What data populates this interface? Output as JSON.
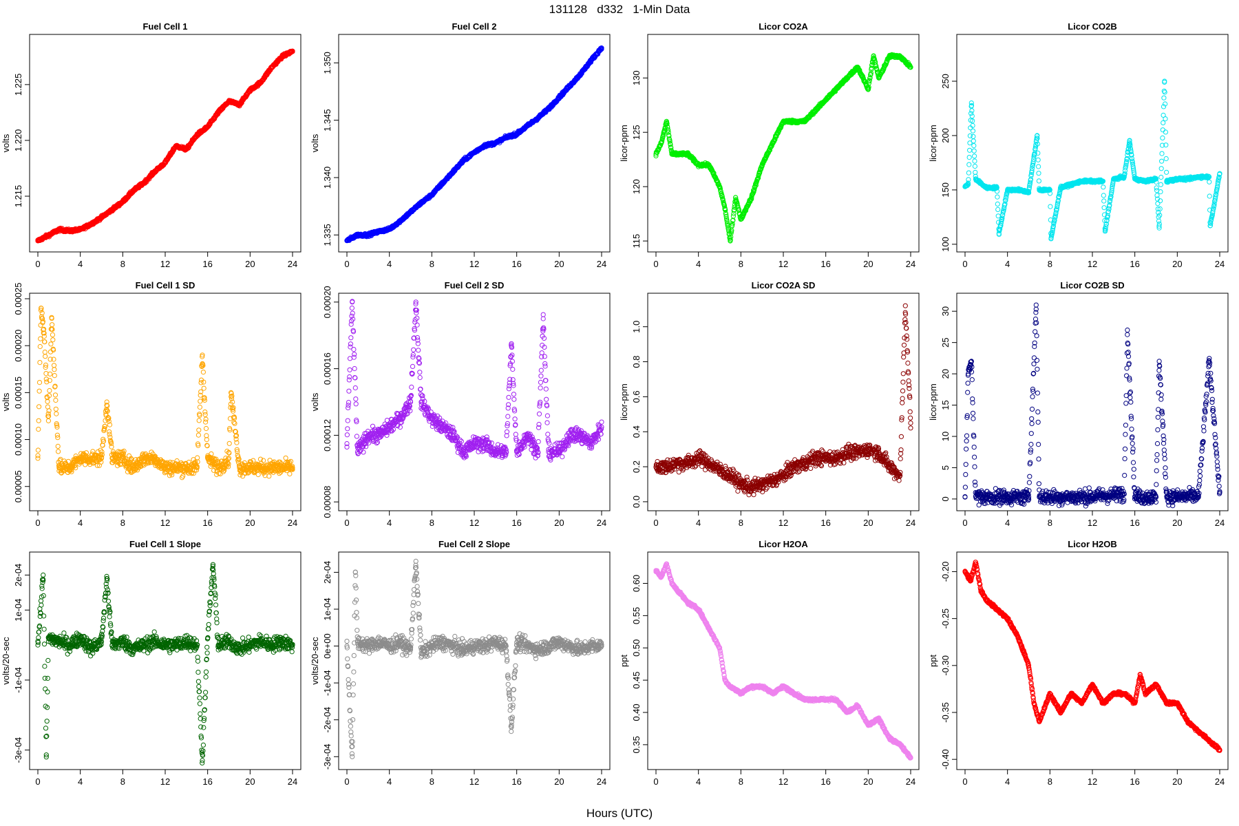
{
  "title": "131128   d332   1-Min Data",
  "xlabel": "Hours (UTC)",
  "chart_data": [
    {
      "type": "scatter",
      "title": "Fuel Cell 1",
      "ylabel": "volts",
      "color": "#ff0000",
      "xlim": [
        0,
        24
      ],
      "ylim": [
        1.2105,
        1.229
      ],
      "yticks": [
        "1.215",
        "1.220",
        "1.225"
      ],
      "x": [
        0,
        1,
        2,
        3,
        4,
        5,
        6,
        7,
        8,
        9,
        10,
        11,
        12,
        13,
        14,
        15,
        16,
        17,
        18,
        19,
        20,
        21,
        22,
        23,
        24
      ],
      "y": [
        1.211,
        1.2115,
        1.212,
        1.2119,
        1.212,
        1.2125,
        1.2131,
        1.2138,
        1.2145,
        1.2155,
        1.2162,
        1.2172,
        1.218,
        1.2195,
        1.2192,
        1.2205,
        1.2212,
        1.2225,
        1.2235,
        1.2232,
        1.2245,
        1.2252,
        1.2265,
        1.2275,
        1.228
      ]
    },
    {
      "type": "scatter",
      "title": "Fuel Cell 2",
      "ylabel": "volts",
      "color": "#0000ff",
      "xlim": [
        0,
        24
      ],
      "ylim": [
        1.334,
        1.352
      ],
      "yticks": [
        "1.335",
        "1.340",
        "1.345",
        "1.350"
      ],
      "x": [
        0,
        1,
        2,
        3,
        4,
        5,
        6,
        7,
        8,
        9,
        10,
        11,
        12,
        13,
        14,
        15,
        16,
        17,
        18,
        19,
        20,
        21,
        22,
        23,
        24
      ],
      "y": [
        1.3345,
        1.335,
        1.335,
        1.3353,
        1.3355,
        1.3362,
        1.337,
        1.3378,
        1.3385,
        1.3395,
        1.3405,
        1.3415,
        1.3422,
        1.3428,
        1.343,
        1.3435,
        1.3438,
        1.3445,
        1.3452,
        1.346,
        1.347,
        1.348,
        1.349,
        1.3502,
        1.3513
      ]
    },
    {
      "type": "scatter",
      "title": "Licor CO2A",
      "ylabel": "licor-ppm",
      "color": "#00ee00",
      "xlim": [
        0,
        24
      ],
      "ylim": [
        114.5,
        133.5
      ],
      "yticks": [
        "115",
        "120",
        "125",
        "130"
      ],
      "x": [
        0,
        0.5,
        1,
        1.5,
        2,
        3,
        4,
        5,
        6,
        6.5,
        7,
        7.5,
        8,
        9,
        10,
        11,
        12,
        13,
        14,
        15,
        16,
        17,
        18,
        19,
        20,
        20.5,
        21,
        22,
        23,
        24
      ],
      "y": [
        123,
        124,
        126,
        123,
        123,
        123,
        122,
        122,
        120,
        118,
        115,
        119,
        117,
        119,
        122,
        124,
        126,
        126,
        126,
        127,
        128,
        129,
        130,
        131,
        129,
        132,
        130,
        132,
        132,
        131
      ]
    },
    {
      "type": "scatter",
      "title": "Licor CO2B",
      "ylabel": "licor-ppm",
      "color": "#00e5ee",
      "xlim": [
        0,
        24
      ],
      "ylim": [
        98,
        288
      ],
      "yticks": [
        "100",
        "150",
        "200",
        "250"
      ],
      "x": [
        0,
        0.3,
        0.6,
        1,
        2,
        3,
        3.2,
        4,
        5,
        6,
        6.8,
        7,
        8,
        8.1,
        9,
        10,
        11,
        12,
        13,
        13.2,
        14,
        15,
        15.5,
        16,
        17,
        18,
        18.3,
        18.8,
        19,
        20,
        21,
        22,
        23,
        23.1,
        24
      ],
      "y": [
        153,
        155,
        230,
        160,
        152,
        152,
        110,
        150,
        150,
        148,
        200,
        150,
        150,
        105,
        152,
        155,
        158,
        158,
        158,
        112,
        160,
        162,
        195,
        160,
        158,
        160,
        115,
        250,
        158,
        160,
        160,
        162,
        162,
        117,
        165
      ]
    },
    {
      "type": "scatter",
      "title": "Fuel Cell 1 SD",
      "ylabel": "volts",
      "color": "#ffa500",
      "xlim": [
        0,
        24
      ],
      "ylim": [
        3e-05,
        0.00025
      ],
      "yticks": [
        "0.00005",
        "0.00010",
        "0.00015",
        "0.00020",
        "0.00025"
      ],
      "x": [
        0,
        0.3,
        0.6,
        1,
        1.3,
        2,
        3,
        4,
        5,
        6,
        6.5,
        7,
        8,
        9,
        10,
        11,
        12,
        13,
        14,
        15,
        15.5,
        16,
        17,
        18,
        18.2,
        19,
        20,
        21,
        22,
        23,
        24
      ],
      "y": [
        8e-05,
        0.00024,
        0.00021,
        0.00012,
        0.00023,
        7e-05,
        7e-05,
        8e-05,
        8e-05,
        8e-05,
        0.00014,
        8e-05,
        8e-05,
        7e-05,
        8e-05,
        8e-05,
        7e-05,
        7e-05,
        7e-05,
        7e-05,
        0.00019,
        8e-05,
        7e-05,
        8e-05,
        0.00015,
        7e-05,
        7e-05,
        7e-05,
        7e-05,
        7e-05,
        7e-05
      ]
    },
    {
      "type": "scatter",
      "title": "Fuel Cell 2 SD",
      "ylabel": "volts",
      "color": "#a020f0",
      "xlim": [
        0,
        24
      ],
      "ylim": [
        7.8e-05,
        0.000202
      ],
      "yticks": [
        "0.00008",
        "0.00012",
        "0.00016",
        "0.00020"
      ],
      "x": [
        0,
        0.5,
        1,
        2,
        3,
        4,
        5,
        6,
        6.5,
        7,
        8,
        9,
        10,
        11,
        12,
        13,
        14,
        15,
        15.5,
        16,
        17,
        18,
        18.5,
        19,
        20,
        21,
        22,
        23,
        24
      ],
      "y": [
        0.000115,
        0.0002,
        0.00011,
        0.00012,
        0.00012,
        0.000125,
        0.00013,
        0.00014,
        0.0002,
        0.00014,
        0.00013,
        0.000125,
        0.00012,
        0.00011,
        0.000115,
        0.000115,
        0.00011,
        0.00011,
        0.000175,
        0.00011,
        0.00012,
        0.00011,
        0.00019,
        0.00011,
        0.00011,
        0.00012,
        0.00012,
        0.000115,
        0.000125
      ]
    },
    {
      "type": "scatter",
      "title": "Licor CO2A SD",
      "ylabel": "licor-ppm",
      "color": "#8b0000",
      "xlim": [
        0,
        24
      ],
      "ylim": [
        -0.02,
        1.16
      ],
      "yticks": [
        "0.0",
        "0.2",
        "0.4",
        "0.6",
        "0.8",
        "1.0"
      ],
      "x": [
        0,
        1,
        2,
        3,
        4,
        5,
        6,
        7,
        8,
        9,
        10,
        11,
        12,
        13,
        14,
        15,
        16,
        17,
        18,
        19,
        20,
        21,
        22,
        23,
        23.5,
        24
      ],
      "y": [
        0.2,
        0.2,
        0.22,
        0.22,
        0.25,
        0.22,
        0.18,
        0.15,
        0.1,
        0.08,
        0.1,
        0.12,
        0.15,
        0.2,
        0.22,
        0.25,
        0.25,
        0.25,
        0.28,
        0.28,
        0.3,
        0.28,
        0.2,
        0.15,
        1.12,
        0.45
      ]
    },
    {
      "type": "scatter",
      "title": "Licor CO2B SD",
      "ylabel": "licor-ppm",
      "color": "#000080",
      "xlim": [
        0,
        24
      ],
      "ylim": [
        -1,
        32
      ],
      "yticks": [
        "0",
        "5",
        "10",
        "15",
        "20",
        "25",
        "30"
      ],
      "x": [
        0,
        0.3,
        0.6,
        1,
        2,
        3,
        4,
        5,
        6,
        6.7,
        7,
        8,
        9,
        10,
        11,
        12,
        13,
        14,
        15,
        15.3,
        16,
        17,
        18,
        18.3,
        19,
        20,
        21,
        22,
        23,
        24
      ],
      "y": [
        0.3,
        20,
        22,
        0.4,
        0.3,
        0.3,
        0.3,
        0.3,
        0.3,
        31,
        0.3,
        0.3,
        0.3,
        0.3,
        0.3,
        0.4,
        0.5,
        0.6,
        0.8,
        27,
        0.4,
        0.3,
        0.3,
        22,
        0.4,
        0.3,
        0.4,
        0.5,
        22,
        1.2
      ]
    },
    {
      "type": "scatter",
      "title": "Fuel Cell 1 Slope",
      "ylabel": "volts/20-sec",
      "color": "#006400",
      "xlim": [
        0,
        24
      ],
      "ylim": [
        -0.00034,
        0.00025
      ],
      "yticks": [
        "-3e-04",
        "-1e-04",
        "1e-04",
        "2e-04"
      ],
      "x": [
        0,
        0.5,
        0.8,
        1,
        2,
        3,
        4,
        5,
        6,
        6.5,
        7,
        8,
        9,
        10,
        11,
        12,
        13,
        14,
        15,
        15.5,
        16,
        16.5,
        17,
        18,
        19,
        20,
        21,
        22,
        23,
        24
      ],
      "y": [
        0.0,
        0.0002,
        -0.00032,
        2e-05,
        1e-05,
        0.0,
        2e-05,
        -1e-05,
        1e-05,
        0.00019,
        0.0,
        1e-05,
        -1e-05,
        0.0,
        1e-05,
        0.0,
        0.0,
        1e-05,
        0.0,
        -0.00033,
        2e-05,
        0.00023,
        0.0,
        1e-05,
        -1e-05,
        0.0,
        1e-05,
        0.0,
        1e-05,
        0.0
      ]
    },
    {
      "type": "scatter",
      "title": "Fuel Cell 2 Slope",
      "ylabel": "volts/20-sec",
      "color": "#8c8c8c",
      "xlim": [
        0,
        24
      ],
      "ylim": [
        -0.00032,
        0.00024
      ],
      "yticks": [
        "-3e-04",
        "-2e-04",
        "-1e-04",
        "0e+00",
        "1e-04",
        "2e-04"
      ],
      "x": [
        0,
        0.5,
        0.8,
        1,
        2,
        3,
        4,
        5,
        6,
        6.5,
        7,
        8,
        9,
        10,
        11,
        12,
        13,
        14,
        15,
        15.5,
        16,
        17,
        18,
        19,
        20,
        21,
        22,
        23,
        24
      ],
      "y": [
        0.0,
        -0.0003,
        0.0002,
        1e-05,
        0.0,
        1e-05,
        0.0,
        1e-05,
        -1e-05,
        0.00023,
        -2e-05,
        0.0,
        1e-05,
        0.0,
        -1e-05,
        0.0,
        0.0,
        1e-05,
        0.0,
        -0.00022,
        1e-05,
        0.0,
        -1e-05,
        0.0,
        1e-05,
        0.0,
        -1e-05,
        0.0,
        0.0
      ]
    },
    {
      "type": "scatter",
      "title": "Licor H2OA",
      "ylabel": "ppt",
      "color": "#ee82ee",
      "xlim": [
        0,
        24
      ],
      "ylim": [
        0.32,
        0.64
      ],
      "yticks": [
        "0.35",
        "0.40",
        "0.45",
        "0.50",
        "0.55",
        "0.60"
      ],
      "x": [
        0,
        0.5,
        1,
        1.5,
        2,
        3,
        4,
        5,
        6,
        6.5,
        7,
        8,
        9,
        10,
        11,
        12,
        13,
        14,
        15,
        16,
        17,
        18,
        19,
        20,
        21,
        22,
        23,
        24
      ],
      "y": [
        0.62,
        0.61,
        0.63,
        0.6,
        0.59,
        0.57,
        0.56,
        0.53,
        0.5,
        0.45,
        0.44,
        0.43,
        0.44,
        0.44,
        0.43,
        0.44,
        0.43,
        0.42,
        0.42,
        0.42,
        0.42,
        0.4,
        0.41,
        0.38,
        0.39,
        0.36,
        0.35,
        0.33
      ]
    },
    {
      "type": "scatter",
      "title": "Licor H2OB",
      "ylabel": "ppt",
      "color": "#ff0000",
      "xlim": [
        0,
        24
      ],
      "ylim": [
        -0.405,
        -0.185
      ],
      "yticks": [
        "-0.40",
        "-0.35",
        "-0.30",
        "-0.25",
        "-0.20"
      ],
      "x": [
        0,
        0.5,
        1,
        1.5,
        2,
        3,
        4,
        5,
        6,
        6.5,
        7,
        8,
        9,
        10,
        11,
        12,
        13,
        14,
        15,
        16,
        16.5,
        17,
        18,
        19,
        20,
        21,
        22,
        23,
        24
      ],
      "y": [
        -0.2,
        -0.21,
        -0.19,
        -0.22,
        -0.23,
        -0.24,
        -0.25,
        -0.27,
        -0.3,
        -0.34,
        -0.36,
        -0.33,
        -0.35,
        -0.33,
        -0.34,
        -0.32,
        -0.34,
        -0.33,
        -0.33,
        -0.34,
        -0.31,
        -0.33,
        -0.32,
        -0.34,
        -0.34,
        -0.36,
        -0.37,
        -0.38,
        -0.39
      ]
    }
  ]
}
